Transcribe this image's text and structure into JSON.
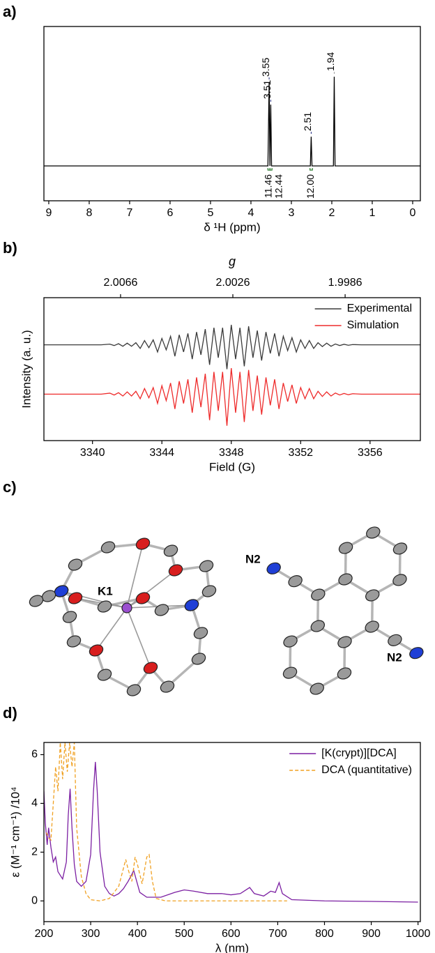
{
  "panel_labels": [
    "a)",
    "b)",
    "c)",
    "d)"
  ],
  "structure_labels": [
    "K1",
    "N2",
    "N2"
  ],
  "chart_data": [
    {
      "type": "line",
      "xlabel": "δ ¹H (ppm)",
      "xlim": [
        9.12,
        -0.19
      ],
      "xticks": [
        9,
        8,
        7,
        6,
        5,
        4,
        3,
        2,
        1,
        0
      ],
      "ylim": [
        -0.25,
        1.0
      ],
      "series": [
        {
          "color": "#000000",
          "x": [
            9.12,
            3.58,
            3.55,
            3.53,
            3.51,
            3.49,
            2.53,
            2.51,
            2.49,
            1.96,
            1.94,
            1.92,
            -0.19
          ],
          "values": [
            0,
            0,
            0.6,
            0,
            0.44,
            0,
            0,
            0.21,
            0,
            0,
            0.64,
            0,
            0
          ]
        }
      ],
      "peak_labels": [
        3.55,
        3.51,
        2.51,
        1.94
      ],
      "peak_label_colors": [
        "#1f2a80",
        "#1f2a80",
        "#1f2a80",
        "#a0a0a0"
      ],
      "integrals": [
        {
          "from": 3.58,
          "to": 3.53,
          "label": "11.46"
        },
        {
          "from": 3.53,
          "to": 3.48,
          "label": "12.44"
        },
        {
          "from": 2.54,
          "to": 2.48,
          "label": "12.00"
        }
      ],
      "integral_color": "#2e7d32"
    },
    {
      "type": "line",
      "xlabel": "Field (G)",
      "ylabel": "Intensity (a. u.)",
      "x2label": "g",
      "xlim": [
        3337.2,
        3358.9
      ],
      "xticks": [
        3340,
        3344,
        3348,
        3352,
        3356
      ],
      "x2lim": [
        2.00933,
        1.99592
      ],
      "x2ticks": [
        2.0066,
        2.0026,
        1.9986
      ],
      "ylim": [
        0,
        10
      ],
      "legend": "upper right",
      "x": [
        3337.2,
        3340.5,
        3341,
        3341.25,
        3341.5,
        3341.75,
        3342,
        3342.25,
        3342.5,
        3342.75,
        3343,
        3343.25,
        3343.5,
        3343.75,
        3344,
        3344.25,
        3344.5,
        3344.75,
        3345,
        3345.25,
        3345.5,
        3345.75,
        3346,
        3346.25,
        3346.5,
        3346.75,
        3347,
        3347.25,
        3347.5,
        3347.75,
        3348,
        3348.25,
        3348.5,
        3348.75,
        3349,
        3349.25,
        3349.5,
        3349.75,
        3350,
        3350.25,
        3350.5,
        3350.75,
        3351,
        3351.25,
        3351.5,
        3351.75,
        3352,
        3352.25,
        3352.5,
        3352.75,
        3353,
        3353.25,
        3353.5,
        3353.75,
        3354,
        3354.25,
        3354.5,
        3354.75,
        3355,
        3355.5,
        3358.9
      ],
      "series": [
        {
          "name": "Experimental",
          "color": "#3a3a3a",
          "values": [
            6.7,
            6.7,
            6.75,
            6.65,
            6.78,
            6.6,
            6.82,
            6.6,
            6.85,
            6.45,
            7,
            6.5,
            7.05,
            6.2,
            7.15,
            6.35,
            7.3,
            5.9,
            7.4,
            6.2,
            7.5,
            5.7,
            7.6,
            6,
            7.8,
            5.3,
            7.9,
            5.8,
            7.9,
            5,
            8.1,
            5.7,
            7.9,
            5.2,
            8,
            5.8,
            7.7,
            5.6,
            7.6,
            6.1,
            7.5,
            5.9,
            7.3,
            6.3,
            7.2,
            6.2,
            7.05,
            6.45,
            7,
            6.45,
            6.85,
            6.58,
            6.82,
            6.6,
            6.76,
            6.65,
            6.74,
            6.67,
            6.72,
            6.7,
            6.7
          ]
        },
        {
          "name": "Simulation",
          "color": "#ee2b2b",
          "values": [
            3.25,
            3.25,
            3.32,
            3.19,
            3.35,
            3.12,
            3.41,
            3.12,
            3.45,
            2.93,
            3.64,
            2.99,
            3.71,
            2.6,
            3.84,
            2.8,
            4.03,
            2.21,
            4.16,
            2.6,
            4.29,
            1.95,
            4.42,
            2.34,
            4.68,
            1.43,
            4.81,
            2.08,
            4.81,
            1.04,
            5.07,
            1.95,
            4.81,
            1.3,
            4.94,
            2.08,
            4.55,
            1.82,
            4.42,
            2.47,
            4.29,
            2.21,
            4.03,
            2.73,
            3.9,
            2.6,
            3.71,
            2.93,
            3.64,
            2.93,
            3.45,
            3.09,
            3.41,
            3.12,
            3.33,
            3.19,
            3.3,
            3.21,
            3.28,
            3.25,
            3.25
          ]
        }
      ]
    },
    {
      "type": "line",
      "xlabel": "λ (nm)",
      "ylabel": "ε (M⁻¹ cm⁻¹) /10⁴",
      "xlim": [
        200,
        1005
      ],
      "xticks": [
        200,
        300,
        400,
        500,
        600,
        700,
        800,
        900,
        1000
      ],
      "ylim": [
        -0.85,
        6.5
      ],
      "yticks": [
        0,
        2,
        4,
        6
      ],
      "legend": "upper right",
      "series": [
        {
          "name": "[K(crypt)][DCA]",
          "color": "#7b1fa2",
          "dash": false,
          "x": [
            200,
            203,
            207,
            210,
            215,
            220,
            225,
            230,
            240,
            248,
            252,
            256,
            260,
            265,
            270,
            280,
            290,
            300,
            306,
            310,
            314,
            320,
            330,
            340,
            350,
            360,
            370,
            380,
            387,
            392,
            397,
            405,
            420,
            450,
            480,
            500,
            520,
            550,
            580,
            600,
            620,
            640,
            650,
            670,
            685,
            695,
            703,
            710,
            730,
            800,
            900,
            1000
          ],
          "values": [
            4.5,
            3.2,
            2.3,
            3.0,
            2.2,
            1.6,
            1.8,
            1.2,
            0.9,
            1.6,
            3.5,
            4.6,
            3.0,
            1.5,
            0.8,
            0.6,
            0.8,
            1.9,
            4.5,
            5.7,
            4.5,
            2.0,
            0.6,
            0.3,
            0.2,
            0.3,
            0.5,
            0.8,
            1.05,
            1.25,
            0.9,
            0.35,
            0.15,
            0.15,
            0.35,
            0.45,
            0.4,
            0.3,
            0.3,
            0.25,
            0.3,
            0.55,
            0.3,
            0.2,
            0.4,
            0.35,
            0.75,
            0.3,
            0.05,
            0,
            -0.02,
            -0.05
          ]
        },
        {
          "name": "DCA (quantitative)",
          "color": "#f0a020",
          "dash": true,
          "x": [
            205,
            210,
            215,
            220,
            225,
            230,
            235,
            240,
            245,
            250,
            255,
            260,
            265,
            270,
            280,
            290,
            300,
            320,
            340,
            360,
            375,
            380,
            388,
            395,
            400,
            410,
            420,
            425,
            432,
            440,
            460,
            720
          ],
          "values": [
            2.8,
            2.6,
            2.5,
            4.0,
            5.5,
            4.5,
            6.5,
            5.0,
            6.5,
            5.3,
            6.5,
            5.5,
            6.5,
            3.0,
            1.0,
            0.3,
            0.05,
            0,
            0.1,
            0.6,
            1.7,
            1.3,
            0.8,
            1.8,
            1.5,
            0.7,
            1.8,
            1.9,
            0.8,
            0.1,
            0,
            0
          ]
        }
      ]
    }
  ]
}
